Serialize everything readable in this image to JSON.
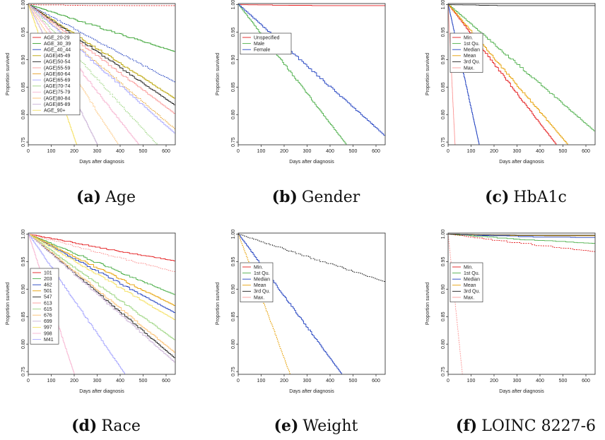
{
  "chart_data": [
    {
      "type": "line",
      "caption_label": "(a)",
      "caption_text": "Age",
      "xlabel": "Days after diagnosis",
      "ylabel": "Proportion survived",
      "xlim": [
        0,
        640
      ],
      "ylim": [
        0.745,
        1.002
      ],
      "xticks": [
        "0",
        "100",
        "200",
        "300",
        "400",
        "500",
        "600"
      ],
      "yticks": [
        "0.75",
        "0.80",
        "0.85",
        "0.90",
        "0.95",
        "1.00"
      ],
      "legend_position": "left",
      "series": [
        {
          "name": "AGE_20-29",
          "color": "#e41a1c",
          "dash": true,
          "end_day": 640,
          "end_y": 1.0
        },
        {
          "name": "AGE_30_39",
          "color": "#33a02c",
          "dash": false,
          "end_day": 640,
          "end_y": 0.914
        },
        {
          "name": "AGE_40_44",
          "color": "#1f3fbf",
          "dash": true,
          "end_day": 640,
          "end_y": 0.858
        },
        {
          "name": "(AGE)45-49",
          "color": "#b8a200",
          "dash": false,
          "end_day": 640,
          "end_y": 0.828
        },
        {
          "name": "(AGE)50-54",
          "color": "#222222",
          "dash": false,
          "end_day": 640,
          "end_y": 0.816
        },
        {
          "name": "(AGE)55-59",
          "color": "#fb9a99",
          "dash": false,
          "end_day": 640,
          "end_y": 0.8
        },
        {
          "name": "(AGE)60-64",
          "color": "#e6a12a",
          "dash": true,
          "end_day": 640,
          "end_y": 0.772
        },
        {
          "name": "(AGE)65-69",
          "color": "#a6a6ff",
          "dash": false,
          "end_day": 640,
          "end_y": 0.764
        },
        {
          "name": "(AGE)70-74",
          "color": "#9ad47f",
          "dash": true,
          "end_day": 560,
          "end_y": 0.745
        },
        {
          "name": "(AGE)75-79",
          "color": "#f7b6d2",
          "dash": false,
          "end_day": 480,
          "end_y": 0.745
        },
        {
          "name": "(AGE)80-84",
          "color": "#fdbf6f",
          "dash": true,
          "end_day": 390,
          "end_y": 0.745
        },
        {
          "name": "(AGE)85-89",
          "color": "#cab2d6",
          "dash": false,
          "end_day": 300,
          "end_y": 0.745
        },
        {
          "name": "AGE_90+",
          "color": "#f5e060",
          "dash": false,
          "end_day": 210,
          "end_y": 0.745
        }
      ]
    },
    {
      "type": "line",
      "caption_label": "(b)",
      "caption_text": "Gender",
      "xlabel": "Days after diagnosis",
      "ylabel": "Proportion survived",
      "xlim": [
        0,
        640
      ],
      "ylim": [
        0.745,
        1.002
      ],
      "xticks": [
        "0",
        "100",
        "200",
        "300",
        "400",
        "500",
        "600"
      ],
      "yticks": [
        "0.75",
        "0.80",
        "0.85",
        "0.90",
        "0.95",
        "1.00"
      ],
      "legend_position": "top-left",
      "series": [
        {
          "name": "Unspecified",
          "color": "#e41a1c",
          "dash": false,
          "end_day": 640,
          "end_y": 1.0
        },
        {
          "name": "Male",
          "color": "#4daf4a",
          "dash": false,
          "end_day": 470,
          "end_y": 0.745
        },
        {
          "name": "Female",
          "color": "#2040c0",
          "dash": false,
          "end_day": 640,
          "end_y": 0.76
        }
      ]
    },
    {
      "type": "line",
      "caption_label": "(c)",
      "caption_text": "HbA1c",
      "xlabel": "Days after diagnosis",
      "ylabel": "Proportion survived",
      "xlim": [
        0,
        640
      ],
      "ylim": [
        0.745,
        1.002
      ],
      "xticks": [
        "0",
        "100",
        "200",
        "300",
        "400",
        "500",
        "600"
      ],
      "yticks": [
        "0.75",
        "0.80",
        "0.85",
        "0.90",
        "0.95",
        "1.00"
      ],
      "legend_position": "top-left",
      "series": [
        {
          "name": "Min.",
          "color": "#e41a1c",
          "dash": false,
          "end_day": 470,
          "end_y": 0.745
        },
        {
          "name": "1st Qu.",
          "color": "#4daf4a",
          "dash": false,
          "end_day": 640,
          "end_y": 0.768
        },
        {
          "name": "Median",
          "color": "#2040c0",
          "dash": false,
          "end_day": 135,
          "end_y": 0.745
        },
        {
          "name": "Mean",
          "color": "#e69f00",
          "dash": false,
          "end_day": 520,
          "end_y": 0.745
        },
        {
          "name": "3rd Qu.",
          "color": "#222222",
          "dash": false,
          "end_day": 640,
          "end_y": 1.0
        },
        {
          "name": "Max.",
          "color": "#fb9a99",
          "dash": false,
          "end_day": 30,
          "end_y": 0.745
        }
      ]
    },
    {
      "type": "line",
      "caption_label": "(d)",
      "caption_text": "Race",
      "xlabel": "Days after diagnosis",
      "ylabel": "Proportion survived",
      "xlim": [
        0,
        640
      ],
      "ylim": [
        0.745,
        1.002
      ],
      "xticks": [
        "0",
        "100",
        "200",
        "300",
        "400",
        "500",
        "600"
      ],
      "yticks": [
        "0.75",
        "0.80",
        "0.85",
        "0.90",
        "0.95",
        "1.00"
      ],
      "legend_position": "left",
      "series": [
        {
          "name": "101",
          "color": "#e41a1c",
          "dash": false,
          "end_day": 640,
          "end_y": 0.951
        },
        {
          "name": "203",
          "color": "#4daf4a",
          "dash": false,
          "end_day": 640,
          "end_y": 0.889
        },
        {
          "name": "462",
          "color": "#2040c0",
          "dash": false,
          "end_day": 640,
          "end_y": 0.856
        },
        {
          "name": "501",
          "color": "#e69f00",
          "dash": false,
          "end_day": 640,
          "end_y": 0.869
        },
        {
          "name": "547",
          "color": "#222222",
          "dash": false,
          "end_day": 640,
          "end_y": 0.773
        },
        {
          "name": "613",
          "color": "#fb9a99",
          "dash": true,
          "end_day": 640,
          "end_y": 0.931
        },
        {
          "name": "615",
          "color": "#9ad47f",
          "dash": false,
          "end_day": 640,
          "end_y": 0.806
        },
        {
          "name": "676",
          "color": "#fdbf6f",
          "dash": false,
          "end_day": 640,
          "end_y": 0.783
        },
        {
          "name": "699",
          "color": "#cab2d6",
          "dash": false,
          "end_day": 640,
          "end_y": 0.765
        },
        {
          "name": "997",
          "color": "#f5e060",
          "dash": false,
          "end_day": 640,
          "end_y": 0.843
        },
        {
          "name": "998",
          "color": "#f7b6d2",
          "dash": false,
          "end_day": 200,
          "end_y": 0.745
        },
        {
          "name": "M41",
          "color": "#a6a6ff",
          "dash": false,
          "end_day": 420,
          "end_y": 0.745
        }
      ]
    },
    {
      "type": "line",
      "caption_label": "(e)",
      "caption_text": "Weight",
      "xlabel": "Days after diagnosis",
      "ylabel": "Proportion survived",
      "xlim": [
        0,
        640
      ],
      "ylim": [
        0.745,
        1.002
      ],
      "xticks": [
        "0",
        "100",
        "200",
        "300",
        "400",
        "500",
        "600"
      ],
      "yticks": [
        "0.75",
        "0.80",
        "0.85",
        "0.90",
        "0.95",
        "1.00"
      ],
      "legend_position": "top-left",
      "series": [
        {
          "name": "Min.",
          "color": "#e41a1c",
          "dash": false,
          "end_day": 0,
          "end_y": 1.0
        },
        {
          "name": "1st Qu.",
          "color": "#4daf4a",
          "dash": false,
          "end_day": 0,
          "end_y": 1.0
        },
        {
          "name": "Median",
          "color": "#2040c0",
          "dash": false,
          "end_day": 450,
          "end_y": 0.745
        },
        {
          "name": "Mean",
          "color": "#e69f00",
          "dash": true,
          "end_day": 225,
          "end_y": 0.745
        },
        {
          "name": "3rd Qu.",
          "color": "#222222",
          "dash": true,
          "end_day": 640,
          "end_y": 0.913
        },
        {
          "name": "Max.",
          "color": "#fb9a99",
          "dash": false,
          "end_day": 0,
          "end_y": 1.0
        }
      ]
    },
    {
      "type": "line",
      "caption_label": "(f)",
      "caption_text": "LOINC 8227-6",
      "xlabel": "Days after diagnosis",
      "ylabel": "Proportion survived",
      "xlim": [
        0,
        640
      ],
      "ylim": [
        0.745,
        1.002
      ],
      "xticks": [
        "0",
        "100",
        "200",
        "300",
        "400",
        "500",
        "600"
      ],
      "yticks": [
        "0.75",
        "0.80",
        "0.85",
        "0.90",
        "0.95",
        "1.00"
      ],
      "legend_position": "top-left",
      "series": [
        {
          "name": "Min.",
          "color": "#e41a1c",
          "dash": true,
          "end_day": 640,
          "end_y": 0.968
        },
        {
          "name": "1st Qu.",
          "color": "#4daf4a",
          "dash": false,
          "end_day": 640,
          "end_y": 0.983
        },
        {
          "name": "Median",
          "color": "#2040c0",
          "dash": false,
          "end_day": 640,
          "end_y": 0.994
        },
        {
          "name": "Mean",
          "color": "#e69f00",
          "dash": false,
          "end_day": 640,
          "end_y": 0.998
        },
        {
          "name": "3rd Qu.",
          "color": "#222222",
          "dash": false,
          "end_day": 640,
          "end_y": 1.0
        },
        {
          "name": "Max.",
          "color": "#fb9a99",
          "dash": true,
          "end_day": 62,
          "end_y": 0.745
        }
      ]
    }
  ]
}
